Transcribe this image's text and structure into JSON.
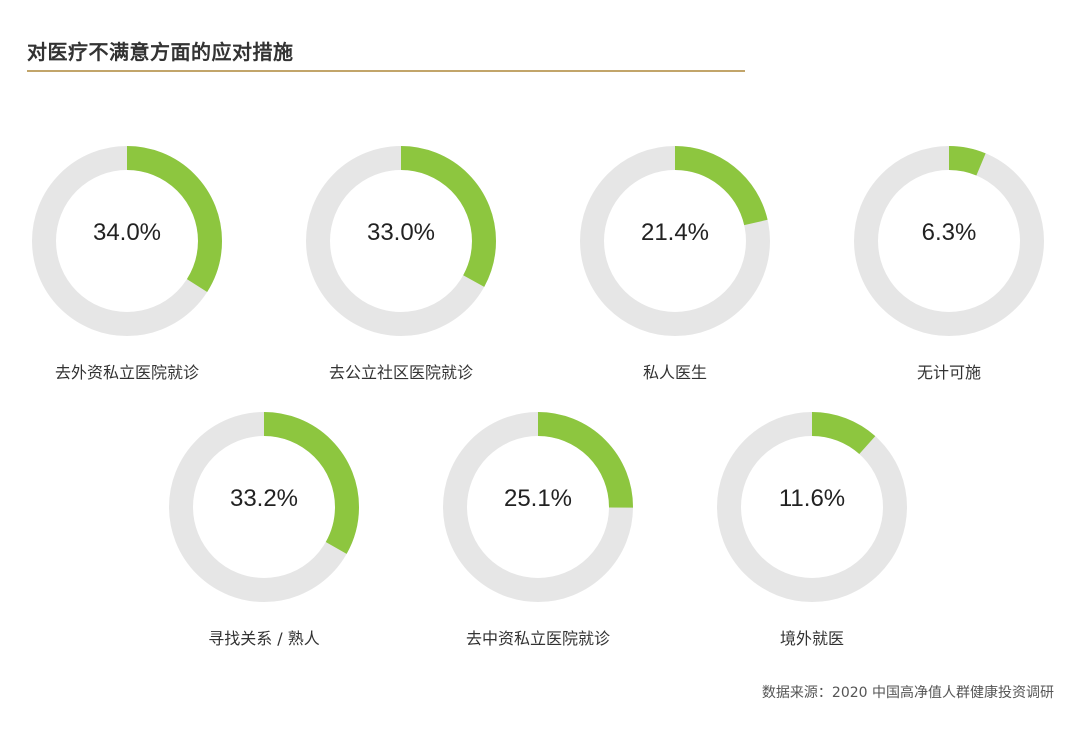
{
  "header": {
    "title": "对医疗不满意方面的应对措施"
  },
  "colors": {
    "accent": "#8dc63f",
    "track": "#e6e6e6",
    "rule": "#c2a56a"
  },
  "chart_data": {
    "type": "pie",
    "subtype": "donut-grid",
    "items": [
      {
        "label": "去外资私立医院就诊",
        "value": 34.0,
        "display": "34.0%"
      },
      {
        "label": "去公立社区医院就诊",
        "value": 33.0,
        "display": "33.0%"
      },
      {
        "label": "私人医生",
        "value": 21.4,
        "display": "21.4%"
      },
      {
        "label": "无计可施",
        "value": 6.3,
        "display": "6.3%"
      },
      {
        "label": "寻找关系 / 熟人",
        "value": 33.2,
        "display": "33.2%"
      },
      {
        "label": "去中资私立医院就诊",
        "value": 25.1,
        "display": "25.1%"
      },
      {
        "label": "境外就医",
        "value": 11.6,
        "display": "11.6%"
      }
    ]
  },
  "footer": {
    "source": "数据来源：2020 中国高净值人群健康投资调研"
  }
}
